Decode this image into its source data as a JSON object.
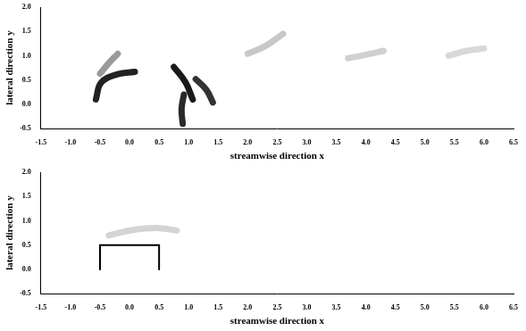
{
  "chart_data": [
    {
      "type": "line",
      "x_label": "streamwise direction x",
      "y_label": "lateral direction y",
      "xlim": [
        -1.5,
        6.5
      ],
      "xticks": [
        -1.5,
        {
          "value": -1,
          "label": "-1.0"
        },
        -0.5,
        {
          "value": 0,
          "label": "0.0"
        },
        0.5,
        {
          "value": 1,
          "label": "1.0"
        },
        1.5,
        {
          "value": 2,
          "label": "2.0"
        },
        2.5,
        {
          "value": 3,
          "label": "3.0"
        },
        3.5,
        {
          "value": 4,
          "label": "4.0"
        },
        4.5,
        {
          "value": 5,
          "label": "5.0"
        },
        5.5,
        {
          "value": 6,
          "label": "6.0"
        },
        6.5
      ],
      "ylim": [
        -0.5,
        2.0
      ],
      "yticks": [
        -0.5,
        {
          "value": 0,
          "label": "0.0"
        },
        0.5,
        {
          "value": 1,
          "label": "1.0"
        },
        1.5,
        {
          "value": 2,
          "label": "2.0"
        }
      ],
      "grid": false,
      "series": [
        {
          "type": "streak",
          "color": "#222222",
          "x": [
            -0.57,
            -0.48,
            -0.2,
            0.09
          ],
          "values": [
            0.1,
            0.45,
            0.62,
            0.67
          ]
        },
        {
          "type": "streak",
          "color": "#9a9a9a",
          "x": [
            -0.5,
            -0.35,
            -0.2
          ],
          "values": [
            0.63,
            0.85,
            1.04
          ]
        },
        {
          "type": "streak",
          "color": "#1a1a1a",
          "x": [
            0.75,
            0.95,
            1.07
          ],
          "values": [
            0.77,
            0.45,
            0.1
          ]
        },
        {
          "type": "streak",
          "color": "#2a2a2a",
          "x": [
            0.92,
            0.88,
            0.9
          ],
          "values": [
            0.2,
            -0.1,
            -0.4
          ]
        },
        {
          "type": "streak",
          "color": "#333333",
          "x": [
            1.12,
            1.3,
            1.41
          ],
          "values": [
            0.52,
            0.3,
            0.04
          ]
        },
        {
          "type": "streak",
          "color": "#c8c8c8",
          "x": [
            2.0,
            2.3,
            2.6
          ],
          "values": [
            1.04,
            1.2,
            1.45
          ]
        },
        {
          "type": "streak",
          "color": "#d0d0d0",
          "x": [
            3.7,
            4.0,
            4.3
          ],
          "values": [
            0.95,
            1.02,
            1.1
          ]
        },
        {
          "type": "streak",
          "color": "#d8d8d8",
          "x": [
            5.4,
            5.7,
            6.0
          ],
          "values": [
            1.0,
            1.1,
            1.15
          ]
        }
      ]
    },
    {
      "type": "line",
      "x_label": "streamwise direction x",
      "y_label": "lateral direction y",
      "xlim": [
        -1.5,
        6.5
      ],
      "xticks": [
        -1.5,
        {
          "value": -1,
          "label": "-1.0"
        },
        -0.5,
        {
          "value": 0,
          "label": "0.0"
        },
        0.5,
        {
          "value": 1,
          "label": "1.0"
        },
        1.5,
        {
          "value": 2,
          "label": "2.0"
        },
        2.5,
        {
          "value": 3,
          "label": "3.0"
        },
        3.5,
        {
          "value": 4,
          "label": "4.0"
        },
        4.5,
        {
          "value": 5,
          "label": "5.0"
        },
        5.5,
        {
          "value": 6,
          "label": "6.0"
        },
        6.5
      ],
      "ylim": [
        -0.5,
        2.0
      ],
      "yticks": [
        -0.5,
        {
          "value": 0,
          "label": "0.0"
        },
        0.5,
        {
          "value": 1,
          "label": "1.0"
        },
        1.5,
        {
          "value": 2,
          "label": "2.0"
        }
      ],
      "grid": false,
      "series": [
        {
          "type": "outline",
          "color": "#000000",
          "x": [
            -0.5,
            -0.5,
            0.5,
            0.5
          ],
          "values": [
            0,
            0.5,
            0.5,
            0
          ]
        },
        {
          "type": "streak",
          "color": "#d4d4d4",
          "x": [
            -0.35,
            0.1,
            0.5,
            0.8
          ],
          "values": [
            0.7,
            0.82,
            0.85,
            0.8
          ]
        }
      ]
    }
  ]
}
